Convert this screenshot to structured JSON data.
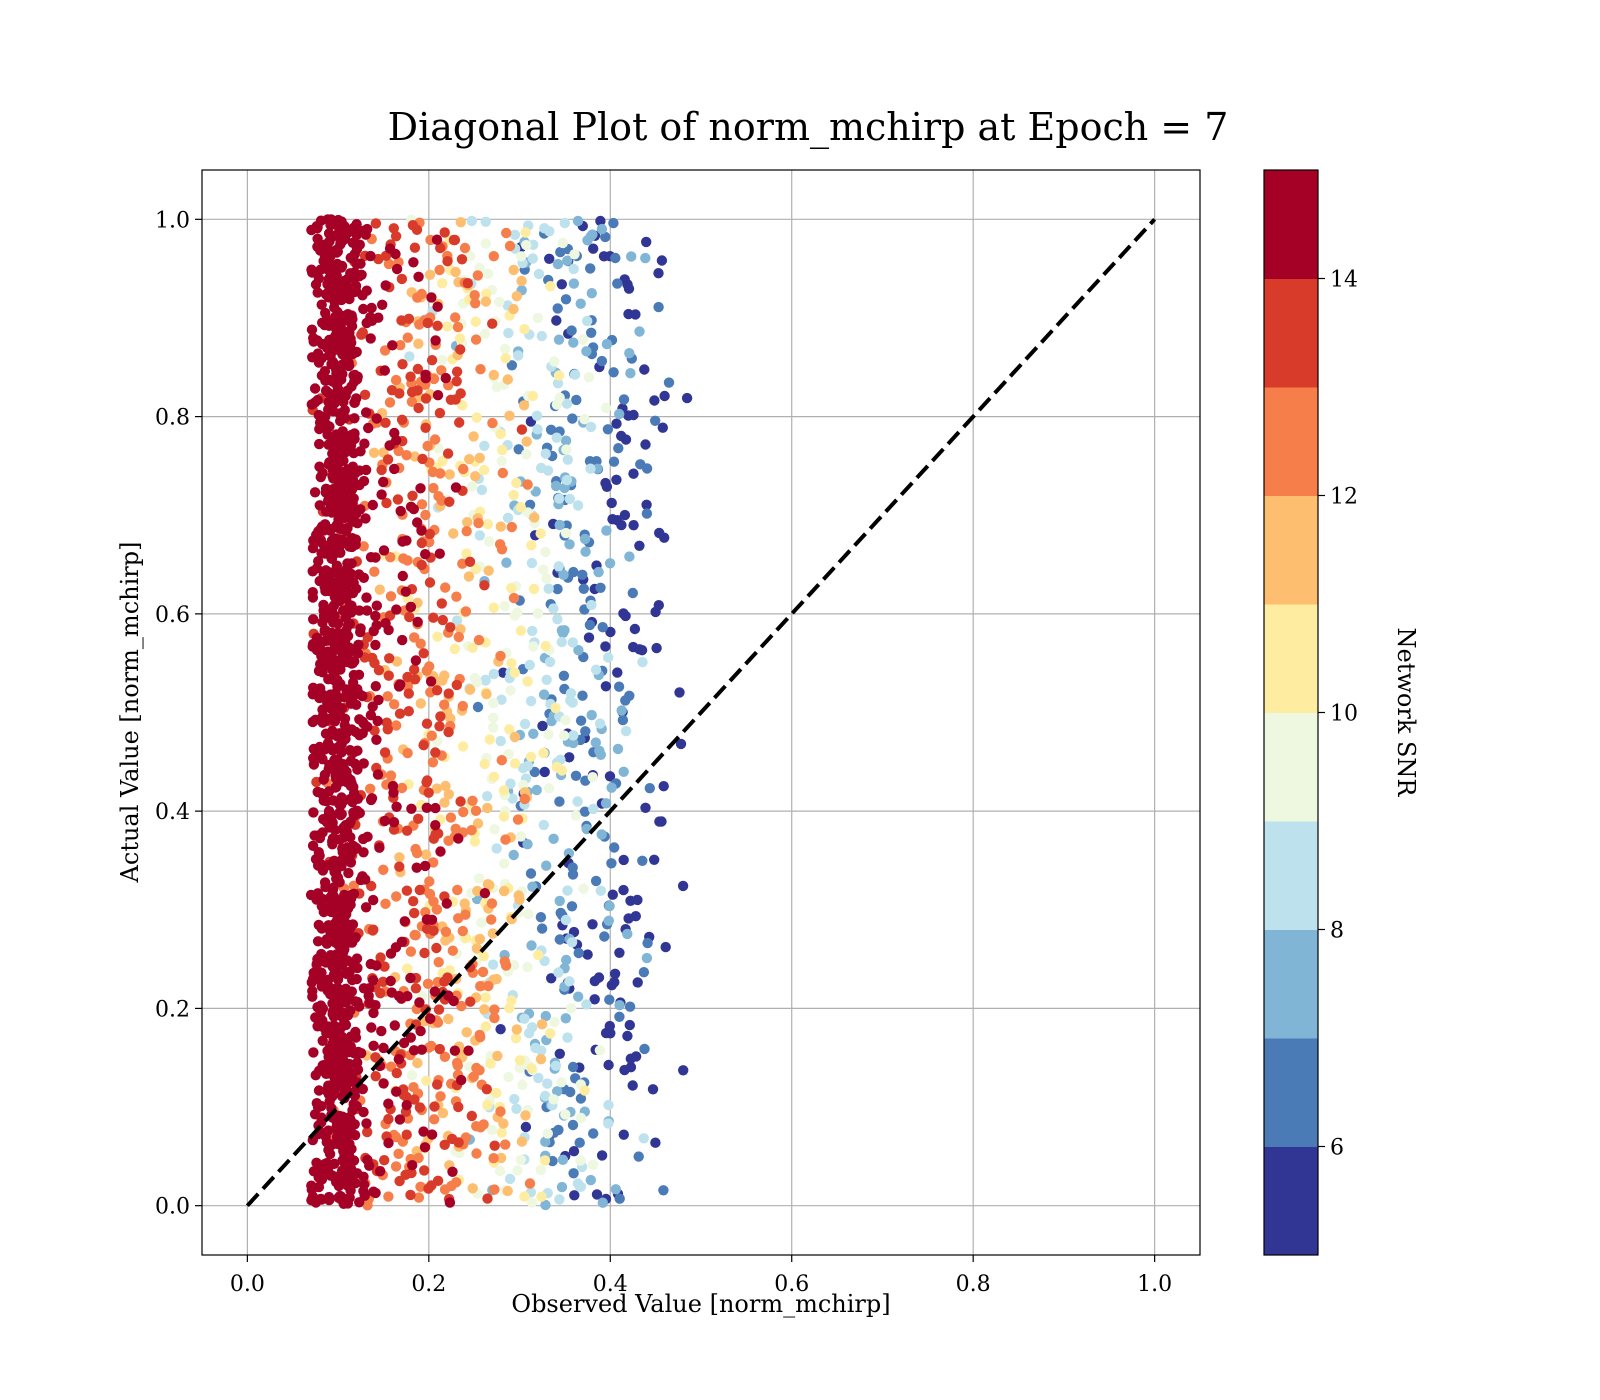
{
  "chart_data": {
    "type": "scatter",
    "title": "Diagonal Plot of norm_mchirp at Epoch = 7",
    "xlabel": "Observed Value [norm_mchirp]",
    "ylabel": "Actual Value [norm_mchirp]",
    "xlim": [
      -0.05,
      1.05
    ],
    "ylim": [
      -0.05,
      1.05
    ],
    "xticks": [
      0.0,
      0.2,
      0.4,
      0.6,
      0.8,
      1.0
    ],
    "yticks": [
      0.0,
      0.2,
      0.4,
      0.6,
      0.8,
      1.0
    ],
    "xtick_labels": [
      "0.0",
      "0.2",
      "0.4",
      "0.6",
      "0.8",
      "1.0"
    ],
    "ytick_labels": [
      "0.0",
      "0.2",
      "0.4",
      "0.6",
      "0.8",
      "1.0"
    ],
    "grid": true,
    "reference_line": {
      "from": [
        0.0,
        0.0
      ],
      "to": [
        1.0,
        1.0
      ],
      "style": "dashed",
      "color": "#000000"
    },
    "point_cloud": {
      "description": "Dense cloud of samples colored by Network SNR",
      "count": 2800,
      "observed_min": 0.07,
      "observed_max": 0.51,
      "actual_min": 0.0,
      "actual_max": 1.0,
      "high_snr_observed_center": 0.1,
      "low_snr_observed_center": 0.42
    },
    "colorbar": {
      "label": "Network SNR",
      "min": 5,
      "max": 15,
      "ticks": [
        6,
        8,
        10,
        12,
        14
      ],
      "tick_labels": [
        "6",
        "8",
        "10",
        "12",
        "14"
      ],
      "bins": [
        {
          "from": 5,
          "to": 6,
          "color": "#313695"
        },
        {
          "from": 6,
          "to": 7,
          "color": "#4a7bb7"
        },
        {
          "from": 7,
          "to": 8,
          "color": "#80b5d6"
        },
        {
          "from": 8,
          "to": 9,
          "color": "#bde2ee"
        },
        {
          "from": 9,
          "to": 10,
          "color": "#eef7e0"
        },
        {
          "from": 10,
          "to": 11,
          "color": "#feeda1"
        },
        {
          "from": 11,
          "to": 12,
          "color": "#fdbe70"
        },
        {
          "from": 12,
          "to": 13,
          "color": "#f67e4b"
        },
        {
          "from": 13,
          "to": 14,
          "color": "#d93b2b"
        },
        {
          "from": 14,
          "to": 15,
          "color": "#a50026"
        }
      ]
    }
  }
}
